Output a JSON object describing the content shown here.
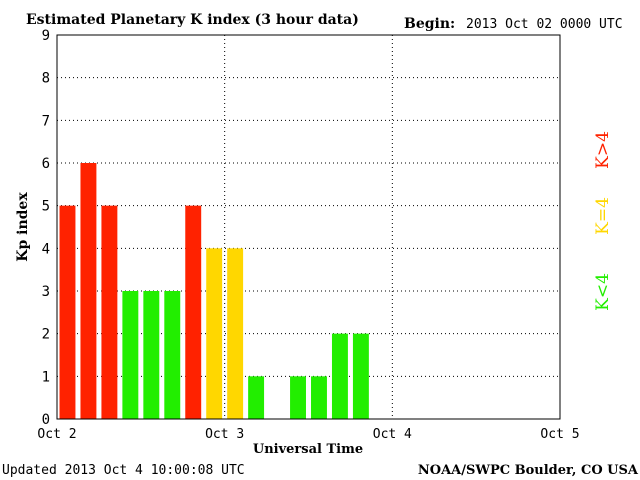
{
  "header": {
    "title": "Estimated Planetary K index (3 hour data)",
    "begin_label": "Begin:",
    "begin_value": "2013 Oct 02 0000 UTC"
  },
  "footer": {
    "updated": "Updated 2013 Oct  4 10:00:08 UTC",
    "credit": "NOAA/SWPC Boulder, CO USA"
  },
  "legend": {
    "storm": "K>4",
    "active": "K=4",
    "quiet": "K<4"
  },
  "colors": {
    "storm": "#ff2200",
    "active": "#ffd700",
    "quiet": "#22ee00"
  },
  "chart_data": {
    "type": "bar",
    "title": "Estimated Planetary K index (3 hour data)",
    "xlabel": "Universal Time",
    "ylabel": "Kp index",
    "ylim": [
      0,
      9
    ],
    "yticks": [
      "0",
      "1",
      "2",
      "3",
      "4",
      "5",
      "6",
      "7",
      "8",
      "9"
    ],
    "xticks": [
      "Oct 2",
      "Oct 3",
      "Oct 4",
      "Oct 5"
    ],
    "grid": true,
    "categories": [
      "Oct 2 00",
      "Oct 2 03",
      "Oct 2 06",
      "Oct 2 09",
      "Oct 2 12",
      "Oct 2 15",
      "Oct 2 18",
      "Oct 2 21",
      "Oct 3 00",
      "Oct 3 03",
      "Oct 3 06",
      "Oct 3 09",
      "Oct 3 12",
      "Oct 3 15",
      "Oct 3 18",
      "Oct 3 21"
    ],
    "values": [
      5,
      6,
      5,
      3,
      3,
      3,
      5,
      4,
      4,
      1,
      null,
      1,
      1,
      2,
      2,
      null
    ]
  }
}
